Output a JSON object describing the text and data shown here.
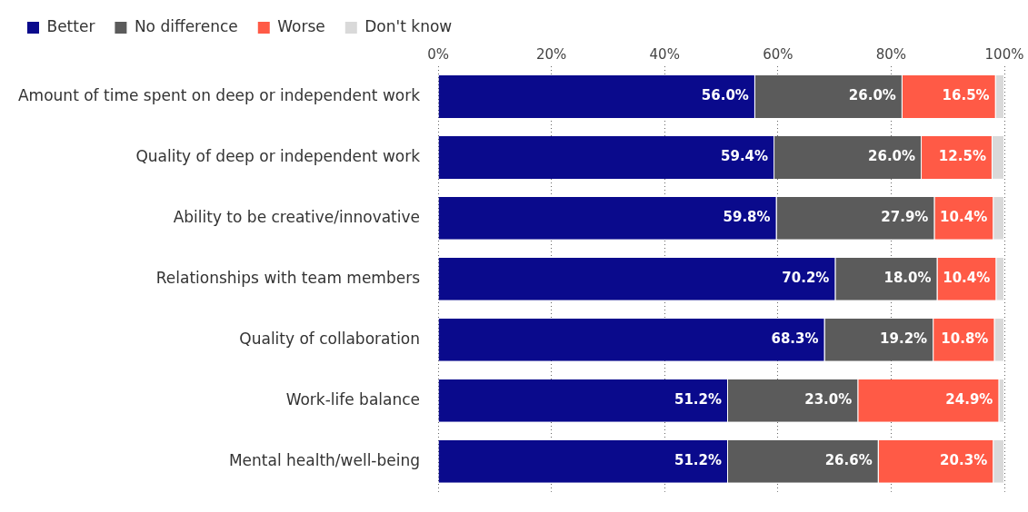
{
  "chart_data": {
    "type": "bar",
    "orientation": "horizontal",
    "stacked": true,
    "categories": [
      "Amount of time spent on deep or independent work",
      "Quality of deep or independent work",
      "Ability to be creative/innovative",
      "Relationships with team members",
      "Quality of collaboration",
      "Work-life balance",
      "Mental health/well-being"
    ],
    "series": [
      {
        "name": "Better",
        "color": "#0a0a8c",
        "values": [
          56.0,
          59.4,
          59.8,
          70.2,
          68.3,
          51.2,
          51.2
        ],
        "value_labels": [
          "56.0%",
          "59.4%",
          "59.8%",
          "70.2%",
          "68.3%",
          "51.2%",
          "51.2%"
        ]
      },
      {
        "name": "No difference",
        "color": "#5b5b5b",
        "values": [
          26.0,
          26.0,
          27.9,
          18.0,
          19.2,
          23.0,
          26.6
        ],
        "value_labels": [
          "26.0%",
          "26.0%",
          "27.9%",
          "18.0%",
          "19.2%",
          "23.0%",
          "26.6%"
        ]
      },
      {
        "name": "Worse",
        "color": "#ff5a46",
        "values": [
          16.5,
          12.5,
          10.4,
          10.4,
          10.8,
          24.9,
          20.3
        ],
        "value_labels": [
          "16.5%",
          "12.5%",
          "10.4%",
          "10.4%",
          "10.8%",
          "24.9%",
          "20.3%"
        ]
      },
      {
        "name": "Don't know",
        "color": "#d9d9d9",
        "values": [
          1.5,
          2.1,
          1.9,
          1.4,
          1.7,
          0.9,
          1.9
        ]
      }
    ],
    "xlim": [
      0,
      100
    ],
    "xticks": [
      {
        "value": 0,
        "label": "0%"
      },
      {
        "value": 20,
        "label": "20%"
      },
      {
        "value": 40,
        "label": "40%"
      },
      {
        "value": 60,
        "label": "60%"
      },
      {
        "value": 80,
        "label": "80%"
      },
      {
        "value": 100,
        "label": "100%"
      }
    ],
    "grid": "x",
    "legend": "top left"
  }
}
